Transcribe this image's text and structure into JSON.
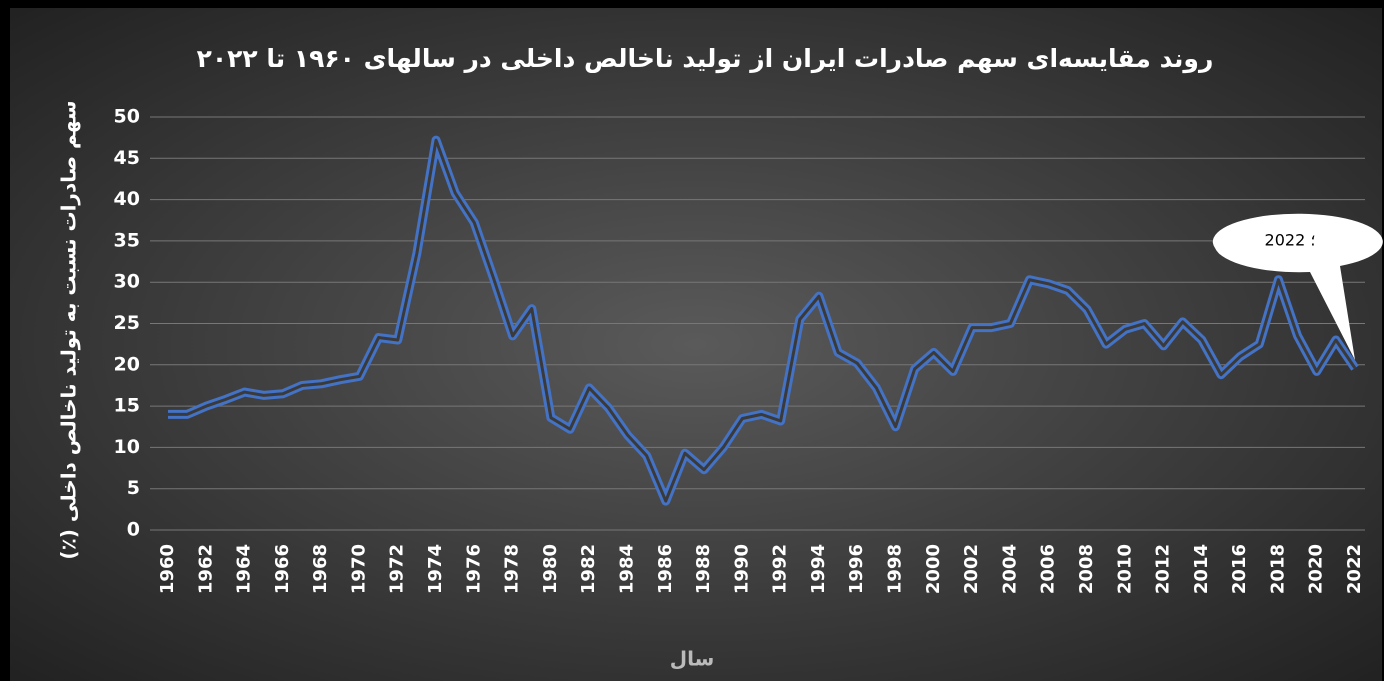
{
  "chart_data": {
    "type": "line",
    "title": "روند مقایسه‌ای سهم صادرات ایران از تولید ناخالص داخلی در سالهای ۱۹۶۰ تا ۲۰۲۲",
    "y_label": "سهم صادرات نسبت به تولید ناخالص داخلی (٪)",
    "x_label": "سال",
    "annotation": "2022 ؛",
    "x": [
      1960,
      1961,
      1962,
      1963,
      1964,
      1965,
      1966,
      1967,
      1968,
      1969,
      1970,
      1971,
      1972,
      1973,
      1974,
      1975,
      1976,
      1977,
      1978,
      1979,
      1980,
      1981,
      1982,
      1983,
      1984,
      1985,
      1986,
      1987,
      1988,
      1989,
      1990,
      1991,
      1992,
      1993,
      1994,
      1995,
      1996,
      1997,
      1998,
      1999,
      2000,
      2001,
      2002,
      2003,
      2004,
      2005,
      2006,
      2007,
      2008,
      2009,
      2010,
      2011,
      2012,
      2013,
      2014,
      2015,
      2016,
      2017,
      2018,
      2019,
      2020,
      2021,
      2022
    ],
    "series": [
      {
        "color": "#4472c4",
        "values": [
          14.0,
          14.0,
          15.0,
          15.8,
          16.7,
          16.3,
          16.5,
          17.5,
          17.7,
          18.2,
          18.6,
          23.3,
          23.0,
          33.5,
          47.2,
          40.8,
          37.2,
          30.5,
          23.5,
          26.8,
          13.6,
          12.2,
          17.2,
          14.8,
          11.5,
          9.0,
          3.5,
          9.3,
          7.3,
          10.0,
          13.5,
          14.0,
          13.2,
          25.5,
          28.3,
          21.5,
          20.2,
          17.2,
          12.5,
          19.5,
          21.5,
          19.2,
          24.5,
          24.5,
          25.0,
          30.3,
          29.8,
          29.0,
          26.7,
          22.5,
          24.3,
          25.0,
          22.3,
          25.2,
          23.0,
          18.8,
          21.0,
          22.5,
          30.3,
          23.5,
          19.2,
          23.0,
          19.6
        ]
      }
    ],
    "xlim": [
      1960,
      2022
    ],
    "xticks": [
      1960,
      1962,
      1964,
      1966,
      1968,
      1970,
      1972,
      1974,
      1976,
      1978,
      1980,
      1982,
      1984,
      1986,
      1988,
      1990,
      1992,
      1994,
      1996,
      1998,
      2000,
      2002,
      2004,
      2006,
      2008,
      2010,
      2012,
      2014,
      2016,
      2018,
      2020,
      2022
    ],
    "ylim": [
      0,
      50
    ],
    "yticks": [
      0,
      5,
      10,
      15,
      20,
      25,
      30,
      35,
      40,
      45,
      50
    ],
    "grid": true
  }
}
